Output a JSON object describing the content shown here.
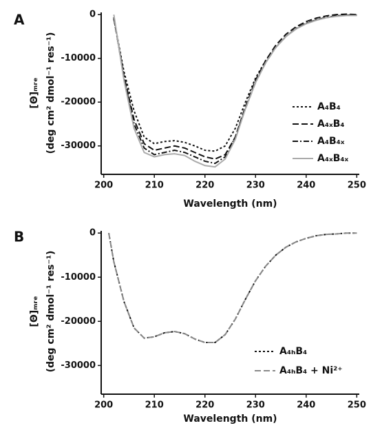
{
  "chart_data": [
    {
      "type": "line",
      "label": "A",
      "ylabel": [
        "[Θ]ₘᵣₑ",
        "(deg cm² dmol⁻¹ res⁻¹)"
      ],
      "xlabel": "Wavelength (nm)",
      "xlim": [
        199.5,
        250.5
      ],
      "xticks": [
        200,
        210,
        220,
        230,
        240,
        250
      ],
      "ylim": [
        -36500,
        500
      ],
      "yticks": [
        0,
        -10000,
        -20000,
        -30000
      ],
      "legend": "lower right",
      "x": [
        202,
        204,
        206,
        208,
        210,
        212,
        214,
        216,
        218,
        220,
        222,
        224,
        226,
        228,
        230,
        232,
        234,
        236,
        238,
        240,
        242,
        244,
        246,
        248,
        250
      ],
      "series": [
        {
          "name": "A₄B₄",
          "color": "#111111",
          "dash": "dotted",
          "values": [
            -1000,
            -13000,
            -22000,
            -28000,
            -29500,
            -29000,
            -28800,
            -29200,
            -30000,
            -31000,
            -31200,
            -30000,
            -26000,
            -20000,
            -14500,
            -10500,
            -7500,
            -5000,
            -3200,
            -2000,
            -1200,
            -700,
            -300,
            -100,
            -200
          ]
        },
        {
          "name": "A₄ₓB₄",
          "color": "#111111",
          "dash": "dashed",
          "values": [
            -800,
            -14000,
            -24000,
            -29500,
            -31000,
            -30500,
            -30000,
            -30500,
            -31500,
            -32500,
            -33000,
            -32000,
            -28000,
            -21000,
            -15000,
            -10500,
            -7000,
            -4500,
            -2800,
            -1600,
            -800,
            -300,
            0,
            100,
            0
          ]
        },
        {
          "name": "A₄B₄ₓ",
          "color": "#111111",
          "dash": "dashdot",
          "values": [
            -600,
            -14500,
            -25000,
            -30500,
            -32000,
            -31500,
            -31000,
            -31500,
            -32500,
            -33500,
            -34000,
            -32500,
            -28000,
            -21500,
            -15500,
            -11000,
            -7500,
            -5000,
            -3200,
            -2000,
            -1200,
            -600,
            -300,
            -100,
            -100
          ]
        },
        {
          "name": "A₄ₓB₄ₓ",
          "color": "#aaaaaa",
          "dash": "solid",
          "values": [
            0,
            -15000,
            -26000,
            -31500,
            -32500,
            -32000,
            -31800,
            -32200,
            -33500,
            -34500,
            -34800,
            -33000,
            -28500,
            -21500,
            -15500,
            -11000,
            -7500,
            -5000,
            -3300,
            -2100,
            -1300,
            -700,
            -400,
            -200,
            -200
          ]
        }
      ]
    },
    {
      "type": "line",
      "label": "B",
      "ylabel": [
        "[Θ]ₘᵣₑ",
        "(deg cm² dmol⁻¹ res⁻¹)"
      ],
      "xlabel": "Wavelength (nm)",
      "xlim": [
        199.5,
        250.5
      ],
      "xticks": [
        200,
        210,
        220,
        230,
        240,
        250
      ],
      "ylim": [
        -36500,
        500
      ],
      "yticks": [
        0,
        -10000,
        -20000,
        -30000
      ],
      "legend": "lower right",
      "x": [
        201,
        202,
        204,
        206,
        208,
        210,
        212,
        214,
        216,
        218,
        220,
        222,
        224,
        226,
        228,
        230,
        232,
        234,
        236,
        238,
        240,
        242,
        244,
        246,
        248,
        250
      ],
      "series": [
        {
          "name": "A₄ₕB₄",
          "color": "#111111",
          "dash": "dotted",
          "values": [
            0,
            -6500,
            -15500,
            -21500,
            -23800,
            -23500,
            -22600,
            -22300,
            -22800,
            -24000,
            -24800,
            -24800,
            -23000,
            -19500,
            -15000,
            -10800,
            -7500,
            -5000,
            -3200,
            -2000,
            -1200,
            -600,
            -300,
            -200,
            0,
            0
          ]
        },
        {
          "name": "A₄ₕB₄ + Ni²⁺",
          "color": "#888888",
          "dash": "dashed",
          "values": [
            0,
            -6500,
            -15500,
            -21500,
            -23800,
            -23500,
            -22600,
            -22300,
            -22800,
            -24000,
            -24800,
            -24800,
            -23000,
            -19500,
            -15000,
            -10800,
            -7500,
            -5000,
            -3200,
            -2000,
            -1200,
            -600,
            -300,
            -200,
            0,
            0
          ]
        }
      ]
    }
  ]
}
